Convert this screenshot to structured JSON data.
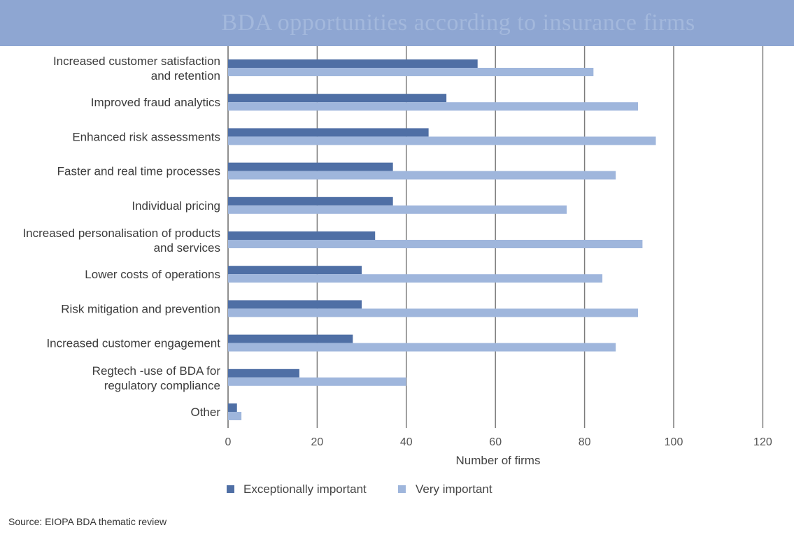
{
  "chart_data": {
    "type": "bar",
    "orientation": "horizontal",
    "title": "BDA opportunities according to insurance firms",
    "xlabel": "Number of firms",
    "ylabel": "",
    "xlim": [
      0,
      120
    ],
    "xticks": [
      0,
      20,
      40,
      60,
      80,
      100,
      120
    ],
    "grid": true,
    "legend_placement": "bottom-left",
    "categories": [
      [
        "Increased customer satisfaction",
        "and retention"
      ],
      [
        "Improved fraud analytics"
      ],
      [
        "Enhanced risk assessments"
      ],
      [
        "Faster and real time processes"
      ],
      [
        "Individual pricing"
      ],
      [
        "Increased personalisation of products",
        "and services"
      ],
      [
        "Lower costs of operations"
      ],
      [
        "Risk mitigation and prevention"
      ],
      [
        "Increased customer engagement"
      ],
      [
        "Regtech -use of BDA for",
        "regulatory compliance"
      ],
      [
        "Other"
      ]
    ],
    "series": [
      {
        "name": "Exceptionally important",
        "color": "#4f6fa5",
        "values": [
          56,
          49,
          45,
          37,
          37,
          33,
          30,
          30,
          28,
          16,
          2
        ]
      },
      {
        "name": "Very important",
        "color": "#9fb6dc",
        "values": [
          82,
          92,
          96,
          87,
          76,
          93,
          84,
          92,
          87,
          40,
          3
        ]
      }
    ]
  },
  "source": "Source: EIOPA BDA thematic review"
}
